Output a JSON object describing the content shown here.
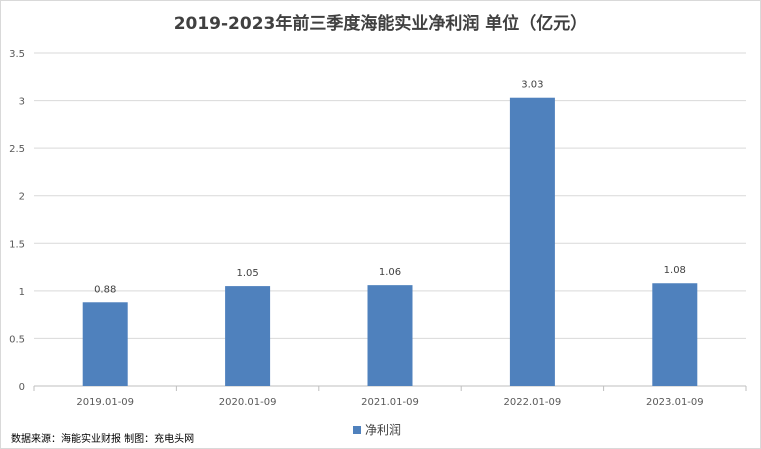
{
  "chart_data": {
    "type": "bar",
    "title": "2019-2023年前三季度海能实业净利润 单位（亿元）",
    "categories": [
      "2019.01-09",
      "2020.01-09",
      "2021.01-09",
      "2022.01-09",
      "2023.01-09"
    ],
    "series": [
      {
        "name": "净利润",
        "values": [
          0.88,
          1.05,
          1.06,
          3.03,
          1.08
        ],
        "color": "#4f81bd"
      }
    ],
    "data_labels": [
      "0.88",
      "1.05",
      "1.06",
      "3.03",
      "1.08"
    ],
    "ylim": [
      0,
      3.5
    ],
    "yticks": [
      0,
      0.5,
      1,
      1.5,
      2,
      2.5,
      3,
      3.5
    ],
    "ytick_labels": [
      "0",
      "0.5",
      "1",
      "1.5",
      "2",
      "2.5",
      "3",
      "3.5"
    ],
    "grid": true,
    "legend_position": "bottom-center"
  },
  "source_note": "数据来源：海能实业财报  制图：充电头网"
}
